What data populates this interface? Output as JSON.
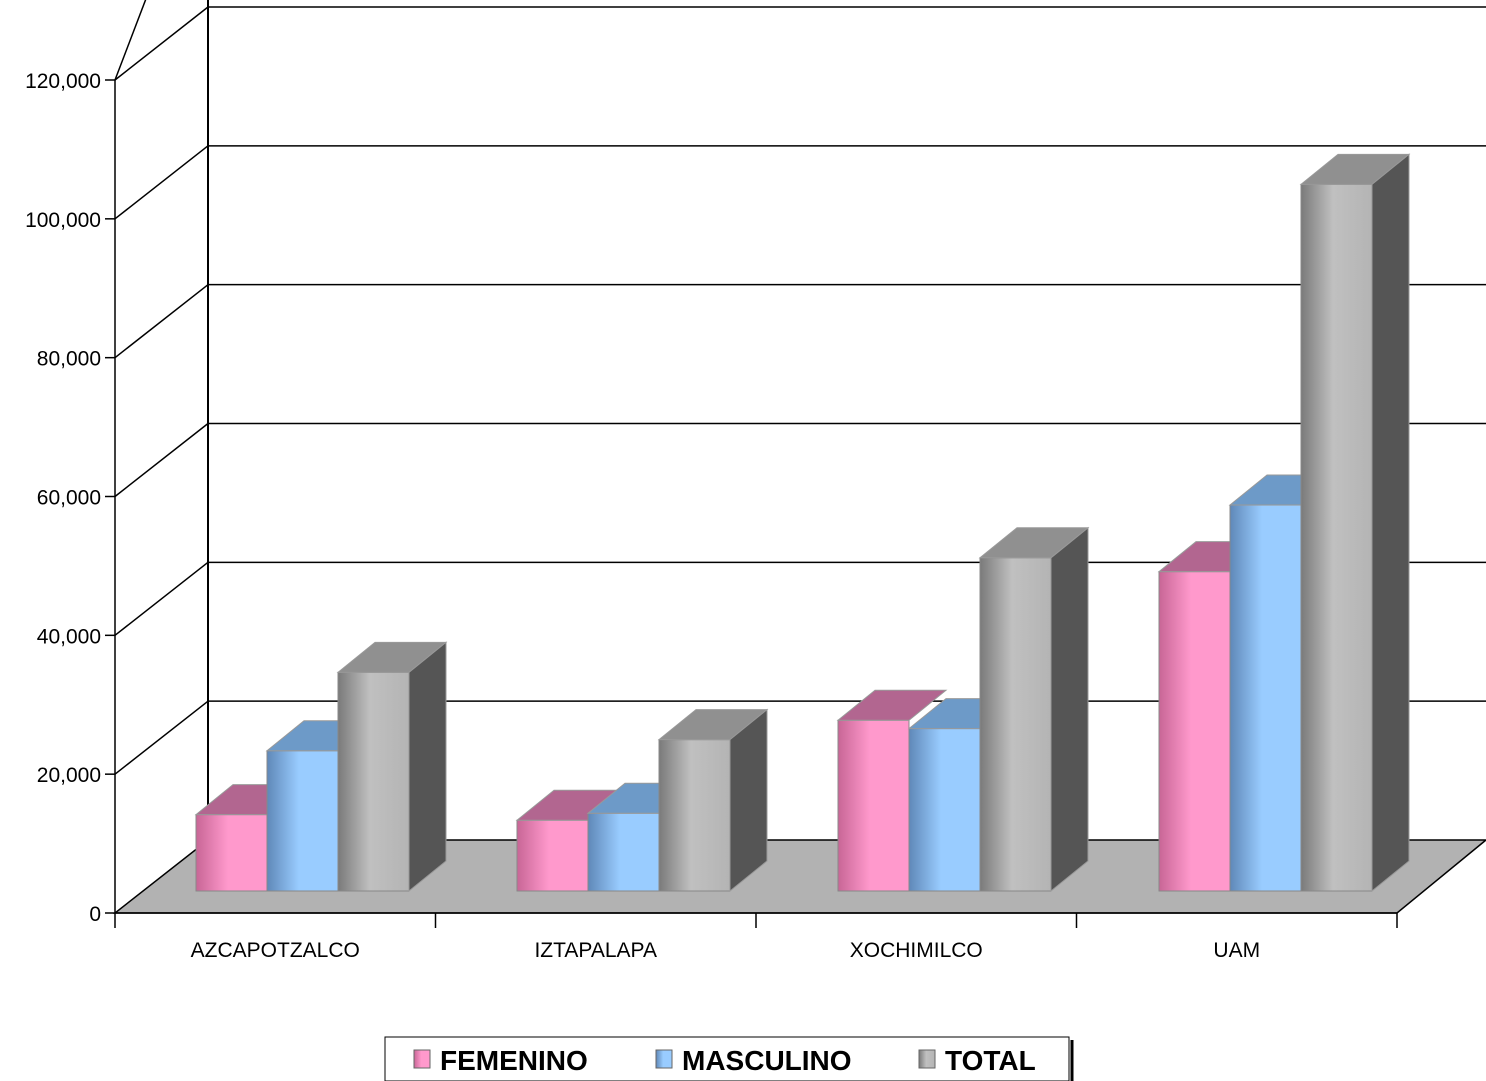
{
  "chart_data": {
    "type": "bar",
    "title": "",
    "xlabel": "",
    "ylabel": "",
    "categories": [
      "AZCAPOTZALCO",
      "IZTAPALAPA",
      "XOCHIMILCO",
      "UAM"
    ],
    "series": [
      {
        "name": "FEMENINO",
        "values": [
          11000,
          10200,
          24600,
          46000
        ]
      },
      {
        "name": "MASCULINO",
        "values": [
          20200,
          11200,
          23400,
          55600
        ]
      },
      {
        "name": "TOTAL",
        "values": [
          31500,
          21800,
          48000,
          101800
        ]
      }
    ],
    "ylim": [
      0,
      120000
    ],
    "y_ticks": [
      "0",
      "20,000",
      "40,000",
      "60,000",
      "80,000",
      "100,000",
      "120,000"
    ],
    "grid": true,
    "legend_position": "bottom",
    "three_d": true,
    "colors": {
      "FEMENINO": "#ff99cc",
      "MASCULINO": "#99ccff",
      "TOTAL": "#c0c0c0",
      "floor": "#b2b2b2"
    }
  }
}
